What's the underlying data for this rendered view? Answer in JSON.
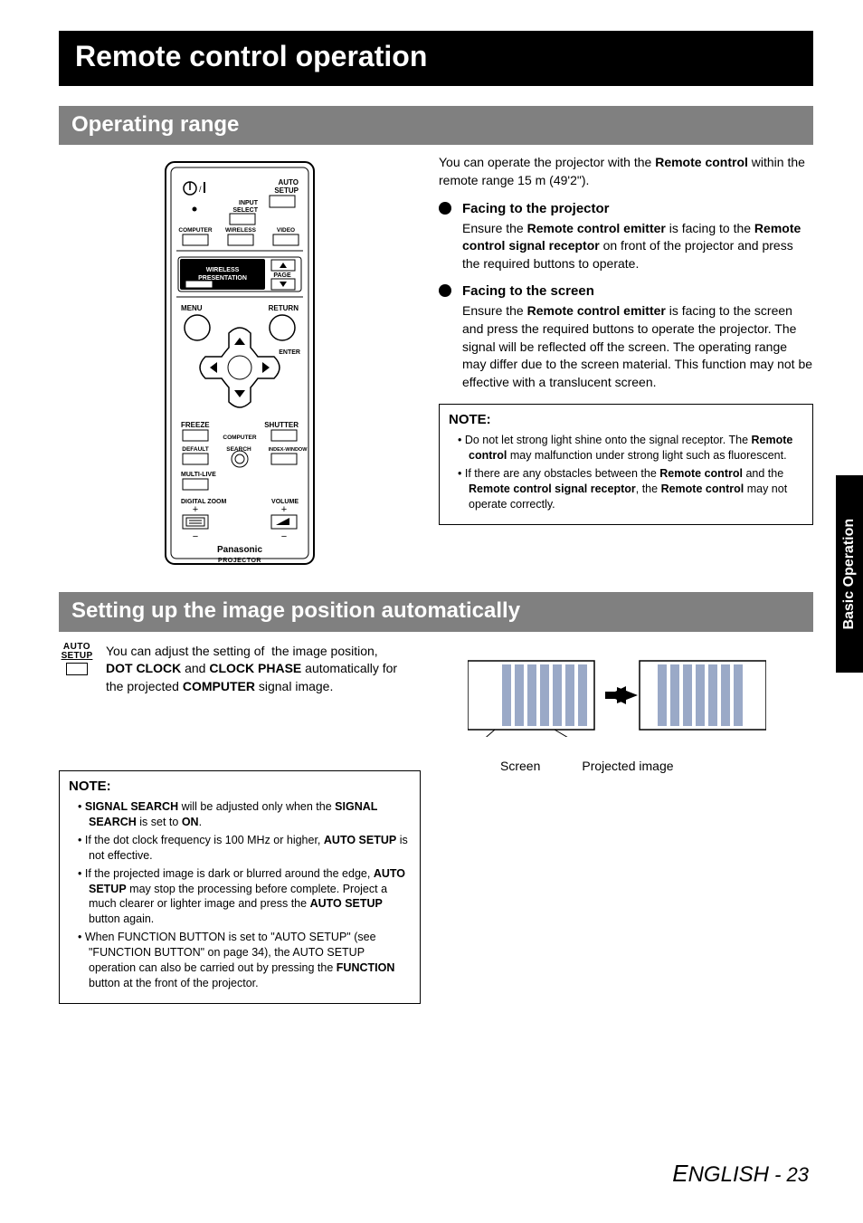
{
  "title": "Remote control operation",
  "section_operating_range": "Operating range",
  "section_setting": "Setting up the image position automatically",
  "side_tab": "Basic Operation",
  "intro_html": "You can operate the projector with the <b>Remote control</b> within the remote range 15 m (49'2\").",
  "facing_projector": {
    "title": "Facing to the projector",
    "body_html": "Ensure the <b>Remote control emitter</b> is facing to the <b>Remote control signal receptor</b> on front of the projector and press the required buttons to operate."
  },
  "facing_screen": {
    "title": "Facing to the screen",
    "body_html": "Ensure the <b>Remote control emitter</b> is facing to the screen and press the required buttons to operate the projector. The signal will be reflected off the screen. The operating range may differ due to the screen material. This function may not be effective with a translucent screen."
  },
  "note1": {
    "heading": "NOTE:",
    "items_html": [
      "Do not let strong light shine onto the signal receptor. The <b>Remote control</b> may malfunction under strong light such as fluorescent.",
      "If there are any obstacles between the <b>Remote control</b> and the <b>Remote control signal receptor</b>, the <b>Remote control</b> may not operate correctly."
    ]
  },
  "auto_setup_icon": {
    "line1": "AUTO",
    "line2": "SETUP"
  },
  "auto_setup_text_html": "You can adjust the setting of &nbsp;the image position, <b>DOT CLOCK</b> and <b>CLOCK PHASE</b> automatically for the projected <b>COMPUTER</b> signal image.",
  "note2": {
    "heading": "NOTE:",
    "items_html": [
      "<b>SIGNAL SEARCH</b> will be adjusted only when the <b>SIGNAL SEARCH</b> is set to <b>ON</b>.",
      "If the dot clock frequency is 100 MHz or higher, <b>AUTO SETUP</b> is not effective.",
      "If the projected image is dark or blurred around the edge, <b>AUTO SETUP</b> may stop the processing before complete. Project a much clearer or lighter image and press the <b>AUTO SETUP</b> button again.",
      "When FUNCTION BUTTON is set to \"AUTO SETUP\" (see \"FUNCTION BUTTON\" on page 34), the AUTO SETUP operation can also be carried out by pressing the <b>FUNCTION</b> button at the front of the projector."
    ]
  },
  "fig_labels": {
    "screen": "Screen",
    "projected": "Projected image"
  },
  "footer": {
    "lang": "ENGLISH",
    "sep": " - ",
    "page": "23"
  },
  "remote": {
    "labels": {
      "auto_setup": "AUTO\nSETUP",
      "input_select": "INPUT\nSELECT",
      "computer": "COMPUTER",
      "wireless": "WIRELESS",
      "video": "VIDEO",
      "wireless_presentation": "WIRELESS\nPRESENTATION",
      "page": "PAGE",
      "menu": "MENU",
      "return": "RETURN",
      "enter": "ENTER",
      "freeze": "FREEZE",
      "shutter": "SHUTTER",
      "computer2": "COMPUTER",
      "default": "DEFAULT",
      "search": "SEARCH",
      "index_window": "INDEX-WINDOW",
      "multi_live": "MULTI-LIVE",
      "digital_zoom": "DIGITAL ZOOM",
      "volume": "VOLUME",
      "brand": "Panasonic",
      "projector": "PROJECTOR"
    }
  },
  "colors": {
    "black": "#000000",
    "section_gray": "#808080",
    "bar_fill": "#9aa9c7",
    "white": "#ffffff"
  }
}
